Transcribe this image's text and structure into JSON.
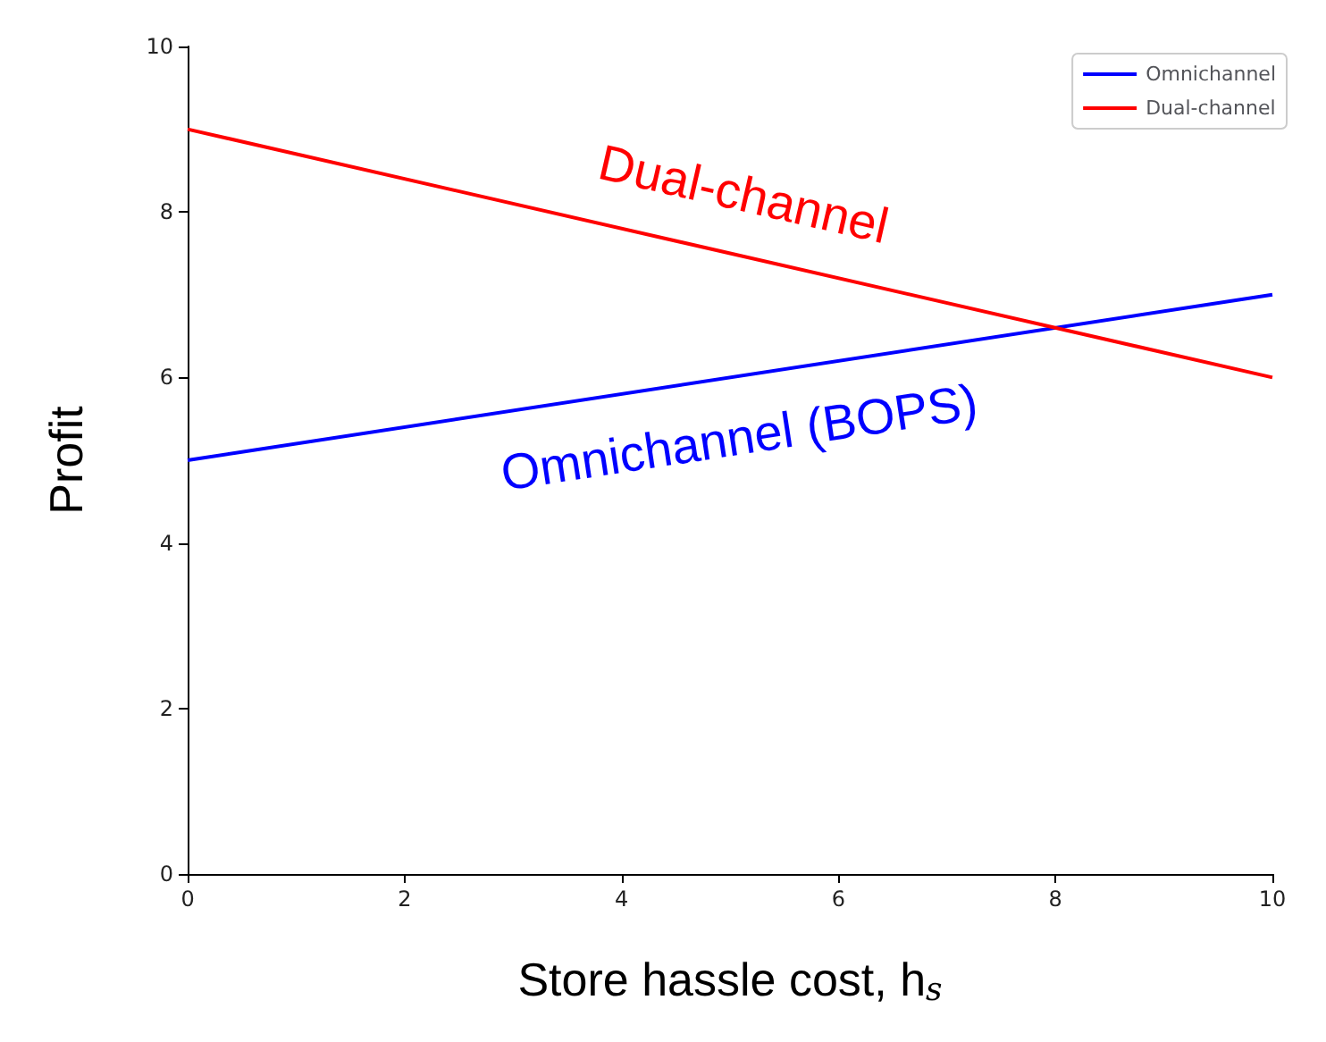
{
  "chart_data": {
    "type": "line",
    "xlabel": "Store hassle cost, h$_{s}$",
    "ylabel": "Profit",
    "x": [
      0,
      10
    ],
    "series": [
      {
        "name": "Omnichannel",
        "color": "#0000ff",
        "values": [
          5,
          7
        ]
      },
      {
        "name": "Dual-channel",
        "color": "#ff0000",
        "values": [
          9,
          6
        ]
      }
    ],
    "annotations": [
      "Omnichannel (BOPS)",
      "Dual-channel"
    ],
    "xlim": [
      0,
      10
    ],
    "xticks": [
      0,
      2,
      4,
      6,
      8,
      10
    ],
    "ylim": [
      0,
      10
    ],
    "yticks": [
      0,
      2,
      4,
      6,
      8,
      10
    ],
    "grid": false,
    "legend": "top right",
    "marker": "none",
    "line_style": "solid"
  }
}
